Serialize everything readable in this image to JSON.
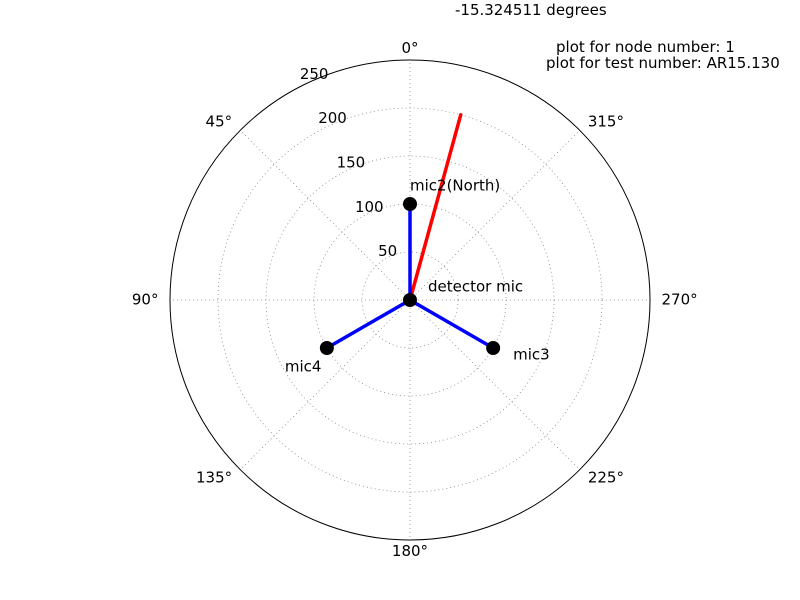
{
  "header": {
    "angle_text": "-15.324511 degrees",
    "node_text": "plot for node number: 1",
    "test_text": "plot for test number: AR15.130"
  },
  "chart_data": {
    "type": "polar",
    "theta_direction": "counterclockwise",
    "theta_zero": "top",
    "r_max": 250,
    "r_ticks": [
      50,
      100,
      150,
      200,
      250
    ],
    "theta_ticks": [
      {
        "deg": 0,
        "label": "0°"
      },
      {
        "deg": 45,
        "label": "45°"
      },
      {
        "deg": 90,
        "label": "90°"
      },
      {
        "deg": 135,
        "label": "135°"
      },
      {
        "deg": 180,
        "label": "180°"
      },
      {
        "deg": 225,
        "label": "225°"
      },
      {
        "deg": 270,
        "label": "270°"
      },
      {
        "deg": 315,
        "label": "315°"
      }
    ],
    "grid": true,
    "microphones": [
      {
        "name": "detector mic",
        "theta": 0,
        "r": 0
      },
      {
        "name": "mic2(North)",
        "theta": 0,
        "r": 100
      },
      {
        "name": "mic3",
        "theta": 240,
        "r": 100
      },
      {
        "name": "mic4",
        "theta": 120,
        "r": 100
      }
    ],
    "bearing": {
      "theta": -15.324511,
      "r": 200,
      "color": "#ff0000"
    },
    "spoke_color": "#0000ff",
    "marker_color": "#000000"
  }
}
